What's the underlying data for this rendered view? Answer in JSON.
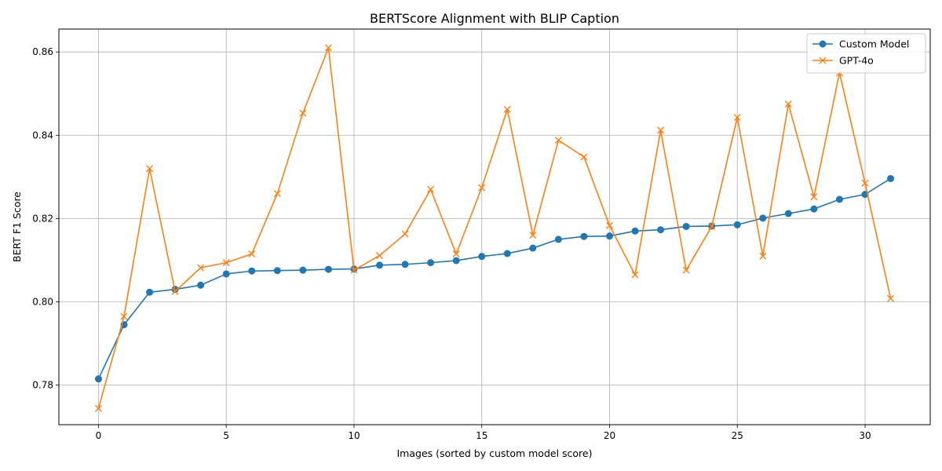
{
  "chart_data": {
    "type": "line",
    "title": "BERTScore Alignment with BLIP Caption",
    "xlabel": "Images (sorted by custom model score)",
    "ylabel": "BERT F1 Score",
    "xlim": [
      -1.55,
      32.55
    ],
    "ylim": [
      0.7705,
      0.8655
    ],
    "xticks": [
      0,
      5,
      10,
      15,
      20,
      25,
      30
    ],
    "xtick_labels": [
      "0",
      "5",
      "10",
      "15",
      "20",
      "25",
      "30"
    ],
    "yticks": [
      0.78,
      0.8,
      0.82,
      0.84,
      0.86
    ],
    "ytick_labels": [
      "0.78",
      "0.80",
      "0.82",
      "0.84",
      "0.86"
    ],
    "grid": true,
    "legend_position": "top-right",
    "x": [
      0,
      1,
      2,
      3,
      4,
      5,
      6,
      7,
      8,
      9,
      10,
      11,
      12,
      13,
      14,
      15,
      16,
      17,
      18,
      19,
      20,
      21,
      22,
      23,
      24,
      25,
      26,
      27,
      28,
      29,
      30,
      31
    ],
    "series": [
      {
        "name": "Custom Model",
        "color": "#1f77b4",
        "marker": "circle",
        "values": [
          0.7815,
          0.7945,
          0.8023,
          0.803,
          0.804,
          0.8067,
          0.8074,
          0.8075,
          0.8076,
          0.8078,
          0.8079,
          0.8088,
          0.809,
          0.8094,
          0.8099,
          0.8109,
          0.8116,
          0.8129,
          0.815,
          0.8157,
          0.8158,
          0.817,
          0.8173,
          0.8181,
          0.8182,
          0.8185,
          0.8201,
          0.8212,
          0.8223,
          0.8246,
          0.8258,
          0.8296
        ]
      },
      {
        "name": "GPT-4o",
        "color": "#ff7f0e",
        "marker": "x",
        "values": [
          0.7744,
          0.7965,
          0.832,
          0.8025,
          0.8082,
          0.8094,
          0.8115,
          0.826,
          0.8453,
          0.861,
          0.8076,
          0.8111,
          0.8163,
          0.827,
          0.8115,
          0.8274,
          0.8462,
          0.816,
          0.8388,
          0.8348,
          0.8183,
          0.8065,
          0.8412,
          0.8076,
          0.8181,
          0.8443,
          0.811,
          0.8475,
          0.8252,
          0.855,
          0.8285,
          0.8008
        ]
      }
    ]
  }
}
